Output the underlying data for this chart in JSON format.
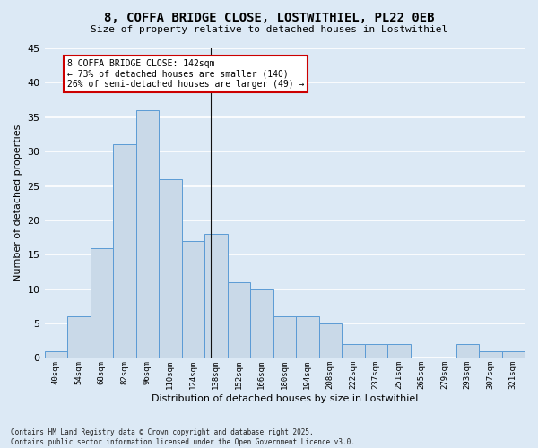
{
  "title": "8, COFFA BRIDGE CLOSE, LOSTWITHIEL, PL22 0EB",
  "subtitle": "Size of property relative to detached houses in Lostwithiel",
  "xlabel": "Distribution of detached houses by size in Lostwithiel",
  "ylabel": "Number of detached properties",
  "bin_labels": [
    "40sqm",
    "54sqm",
    "68sqm",
    "82sqm",
    "96sqm",
    "110sqm",
    "124sqm",
    "138sqm",
    "152sqm",
    "166sqm",
    "180sqm",
    "194sqm",
    "208sqm",
    "222sqm",
    "237sqm",
    "251sqm",
    "265sqm",
    "279sqm",
    "293sqm",
    "307sqm",
    "321sqm"
  ],
  "bar_values": [
    1,
    6,
    16,
    31,
    36,
    26,
    17,
    18,
    11,
    10,
    6,
    6,
    5,
    2,
    2,
    2,
    0,
    0,
    2,
    1,
    1
  ],
  "bar_color": "#c9d9e8",
  "bar_edge_color": "#5b9bd5",
  "bg_color": "#dce9f5",
  "grid_color": "#ffffff",
  "annotation_text": "8 COFFA BRIDGE CLOSE: 142sqm\n← 73% of detached houses are smaller (140)\n26% of semi-detached houses are larger (49) →",
  "annotation_box_color": "#ffffff",
  "annotation_box_edge": "#cc0000",
  "footer": "Contains HM Land Registry data © Crown copyright and database right 2025.\nContains public sector information licensed under the Open Government Licence v3.0.",
  "ylim": [
    0,
    45
  ],
  "yticks": [
    0,
    5,
    10,
    15,
    20,
    25,
    30,
    35,
    40,
    45
  ]
}
